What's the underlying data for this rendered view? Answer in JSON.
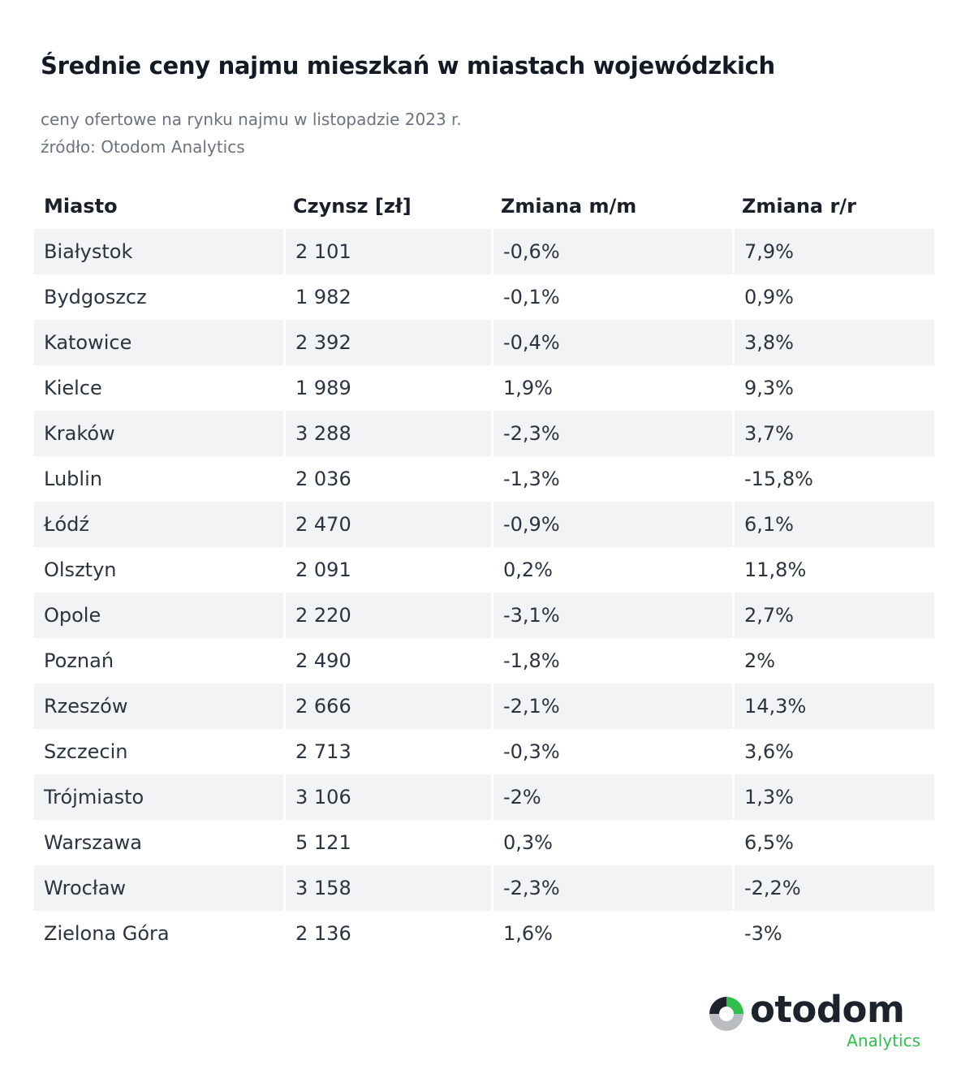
{
  "header": {
    "title": "Średnie ceny najmu mieszkań w miastach wojewódzkich",
    "subtitle_line1": "ceny ofertowe na rynku najmu  w listopadzie 2023 r.",
    "subtitle_line2": "źródło: Otodom Analytics"
  },
  "table": {
    "columns": [
      "Miasto",
      "Czynsz [zł]",
      "Zmiana m/m",
      "Zmiana r/r"
    ],
    "rows": [
      [
        "Białystok",
        "2 101",
        "-0,6%",
        "7,9%"
      ],
      [
        "Bydgoszcz",
        "1 982",
        "-0,1%",
        "0,9%"
      ],
      [
        "Katowice",
        "2 392",
        "-0,4%",
        "3,8%"
      ],
      [
        "Kielce",
        "1 989",
        "1,9%",
        "9,3%"
      ],
      [
        "Kraków",
        "3 288",
        "-2,3%",
        "3,7%"
      ],
      [
        "Lublin",
        "2 036",
        "-1,3%",
        "-15,8%"
      ],
      [
        "Łódź",
        "2 470",
        "-0,9%",
        "6,1%"
      ],
      [
        "Olsztyn",
        "2 091",
        "0,2%",
        "11,8%"
      ],
      [
        "Opole",
        "2 220",
        "-3,1%",
        "2,7%"
      ],
      [
        "Poznań",
        "2 490",
        "-1,8%",
        "2%"
      ],
      [
        "Rzeszów",
        "2 666",
        "-2,1%",
        "14,3%"
      ],
      [
        "Szczecin",
        "2 713",
        "-0,3%",
        "3,6%"
      ],
      [
        "Trójmiasto",
        "3 106",
        "-2%",
        "1,3%"
      ],
      [
        "Warszawa",
        "5 121",
        "0,3%",
        "6,5%"
      ],
      [
        "Wrocław",
        "3 158",
        "-2,3%",
        "-2,2%"
      ],
      [
        "Zielona Góra",
        "2 136",
        "1,6%",
        "-3%"
      ]
    ]
  },
  "logo": {
    "wordmark": "otodom",
    "subtitle": "Analytics",
    "icon": "otodom-logo-icon",
    "colors": {
      "green": "#2fbf4e",
      "gray": "#b9bdc2",
      "dark": "#1d232d"
    }
  }
}
